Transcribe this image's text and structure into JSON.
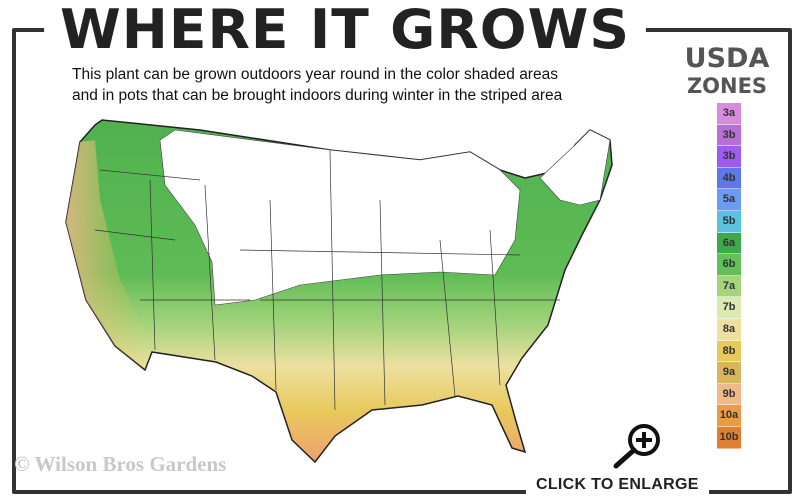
{
  "header": {
    "title": "WHERE IT GROWS",
    "subtitle_line1": "This plant can be grown outdoors year round in the color shaded areas",
    "subtitle_line2": "and in pots that can be brought indoors during winter in the striped area"
  },
  "legend": {
    "title_line1": "USDA",
    "title_line2": "ZONES",
    "zones": [
      {
        "label": "3a",
        "color": "#d98be0"
      },
      {
        "label": "3b",
        "color": "#b86fd6"
      },
      {
        "label": "3b",
        "color": "#9c5cf0"
      },
      {
        "label": "4b",
        "color": "#5b77e8"
      },
      {
        "label": "5a",
        "color": "#6b9cf3"
      },
      {
        "label": "5b",
        "color": "#5ac4de"
      },
      {
        "label": "6a",
        "color": "#3fa84a"
      },
      {
        "label": "6b",
        "color": "#63bf5a"
      },
      {
        "label": "7a",
        "color": "#a5d47d"
      },
      {
        "label": "7b",
        "color": "#dbe9b2"
      },
      {
        "label": "8a",
        "color": "#ede0a0"
      },
      {
        "label": "8b",
        "color": "#e8c95c"
      },
      {
        "label": "9a",
        "color": "#d9b65a"
      },
      {
        "label": "9b",
        "color": "#f0b98a"
      },
      {
        "label": "10a",
        "color": "#eb9a45"
      },
      {
        "label": "10b",
        "color": "#e07f32"
      }
    ]
  },
  "footer": {
    "copyright": "© Wilson Bros Gardens",
    "enlarge_label": "CLICK TO ENLARGE"
  }
}
